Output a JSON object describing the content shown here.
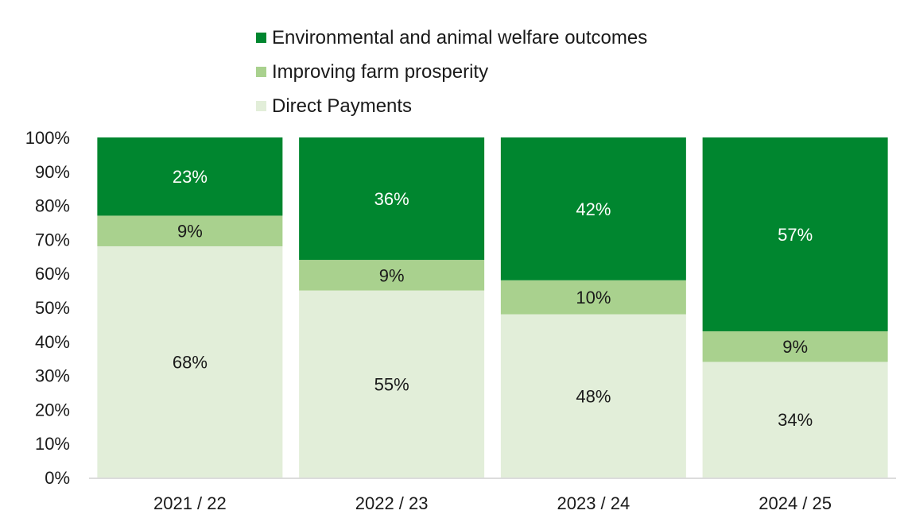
{
  "chart_data": {
    "type": "bar",
    "stacked": true,
    "categories": [
      "2021 / 22",
      "2022 / 23",
      "2023 / 24",
      "2024 / 25"
    ],
    "series": [
      {
        "name": "Direct Payments",
        "values": [
          68,
          55,
          48,
          34
        ],
        "labels": [
          "68%",
          "55%",
          "48%",
          "34%"
        ],
        "color": "#e2eed9",
        "label_color": "#1a1a1a"
      },
      {
        "name": "Improving farm prosperity",
        "values": [
          9,
          9,
          10,
          9
        ],
        "labels": [
          "9%",
          "9%",
          "10%",
          "9%"
        ],
        "color": "#a9d18e",
        "label_color": "#1a1a1a"
      },
      {
        "name": "Environmental and animal welfare outcomes",
        "values": [
          23,
          36,
          42,
          57
        ],
        "labels": [
          "23%",
          "36%",
          "42%",
          "57%"
        ],
        "color": "#00862f",
        "label_color": "#ffffff"
      }
    ],
    "legend_order": [
      2,
      1,
      0
    ],
    "legend_position": "top",
    "ylim": [
      0,
      100
    ],
    "y_ticks": [
      "0%",
      "10%",
      "20%",
      "30%",
      "40%",
      "50%",
      "60%",
      "70%",
      "80%",
      "90%",
      "100%"
    ],
    "grid": false,
    "title": "",
    "xlabel": "",
    "ylabel": ""
  }
}
